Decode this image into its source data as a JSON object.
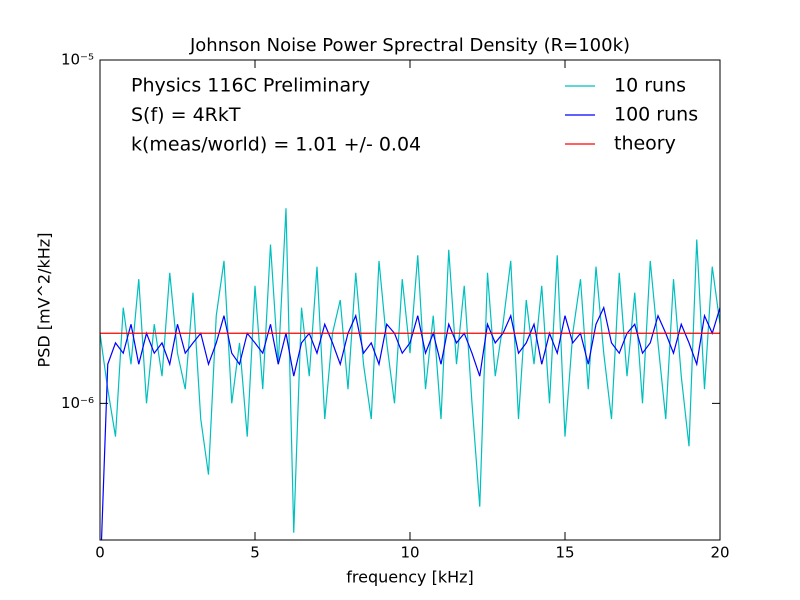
{
  "chart_data": {
    "type": "line",
    "title": "Johnson Noise Power Sprectral Density (R=100k)",
    "xlabel": "frequency [kHz]",
    "ylabel": "PSD [mV^2/kHz]",
    "annotations": [
      "Physics 116C Preliminary",
      "S(f) = 4RkT",
      "k(meas/world) = 1.01 +/- 0.04"
    ],
    "xlim": [
      0,
      20
    ],
    "xticks": [
      0,
      5,
      10,
      15,
      20
    ],
    "ylim": [
      4e-07,
      1e-05
    ],
    "yscale": "log",
    "yticks": [
      {
        "value": 1e-06,
        "label": "10⁻⁶"
      },
      {
        "value": 1e-05,
        "label": "10⁻⁵"
      }
    ],
    "legend": "upper right",
    "x": [
      0,
      0.25,
      0.5,
      0.75,
      1,
      1.25,
      1.5,
      1.75,
      2,
      2.25,
      2.5,
      2.75,
      3,
      3.25,
      3.5,
      3.75,
      4,
      4.25,
      4.5,
      4.75,
      5,
      5.25,
      5.5,
      5.75,
      6,
      6.25,
      6.5,
      6.75,
      7,
      7.25,
      7.5,
      7.75,
      8,
      8.25,
      8.5,
      8.75,
      9,
      9.25,
      9.5,
      9.75,
      10,
      10.25,
      10.5,
      10.75,
      11,
      11.25,
      11.5,
      11.75,
      12,
      12.25,
      12.5,
      12.75,
      13,
      13.25,
      13.5,
      13.75,
      14,
      14.25,
      14.5,
      14.75,
      15,
      15.25,
      15.5,
      15.75,
      16,
      16.25,
      16.5,
      16.75,
      17,
      17.25,
      17.5,
      17.75,
      18,
      18.25,
      18.5,
      18.75,
      19,
      19.25,
      19.5,
      19.75,
      20
    ],
    "series": [
      {
        "name": "10 runs",
        "color": "#00bfbf",
        "values": [
          1.6e-06,
          1.1e-06,
          8e-07,
          1.9e-06,
          1.3e-06,
          2.3e-06,
          1e-06,
          1.7e-06,
          1.2e-06,
          2.4e-06,
          1.4e-06,
          1.1e-06,
          2.1e-06,
          9e-07,
          6.2e-07,
          1.8e-06,
          2.6e-06,
          1e-06,
          1.5e-06,
          8e-07,
          2.2e-06,
          1.1e-06,
          2.9e-06,
          1.3e-06,
          3.7e-06,
          4.2e-07,
          1.9e-06,
          1.2e-06,
          2.5e-06,
          9e-07,
          1.6e-06,
          2e-06,
          1.1e-06,
          2.4e-06,
          1.3e-06,
          9e-07,
          2.6e-06,
          1.5e-06,
          1e-06,
          2.3e-06,
          1.4e-06,
          2.7e-06,
          1.1e-06,
          1.8e-06,
          9e-07,
          2.8e-06,
          1.3e-06,
          2.2e-06,
          1e-06,
          5e-07,
          2.4e-06,
          1.2e-06,
          1.7e-06,
          2.6e-06,
          9e-07,
          2e-06,
          1.3e-06,
          2.2e-06,
          1e-06,
          2.7e-06,
          8e-07,
          1.6e-06,
          2.3e-06,
          1.1e-06,
          2.5e-06,
          1.4e-06,
          9e-07,
          2.4e-06,
          1.2e-06,
          2.1e-06,
          1e-06,
          2.6e-06,
          1.5e-06,
          9e-07,
          2.3e-06,
          1.2e-06,
          7.5e-07,
          3e-06,
          1.1e-06,
          2.5e-06,
          1.7e-06
        ]
      },
      {
        "name": "100 runs",
        "color": "#0000ff",
        "values": [
          3e-07,
          1.3e-06,
          1.5e-06,
          1.4e-06,
          1.7e-06,
          1.3e-06,
          1.6e-06,
          1.4e-06,
          1.5e-06,
          1.3e-06,
          1.7e-06,
          1.4e-06,
          1.5e-06,
          1.6e-06,
          1.3e-06,
          1.5e-06,
          1.8e-06,
          1.4e-06,
          1.3e-06,
          1.6e-06,
          1.5e-06,
          1.4e-06,
          1.7e-06,
          1.3e-06,
          1.6e-06,
          1.2e-06,
          1.5e-06,
          1.6e-06,
          1.4e-06,
          1.7e-06,
          1.5e-06,
          1.3e-06,
          1.6e-06,
          1.8e-06,
          1.4e-06,
          1.5e-06,
          1.3e-06,
          1.7e-06,
          1.6e-06,
          1.4e-06,
          1.5e-06,
          1.8e-06,
          1.4e-06,
          1.6e-06,
          1.3e-06,
          1.7e-06,
          1.5e-06,
          1.6e-06,
          1.4e-06,
          1.2e-06,
          1.7e-06,
          1.5e-06,
          1.6e-06,
          1.8e-06,
          1.4e-06,
          1.5e-06,
          1.7e-06,
          1.3e-06,
          1.6e-06,
          1.4e-06,
          1.8e-06,
          1.5e-06,
          1.6e-06,
          1.3e-06,
          1.7e-06,
          1.9e-06,
          1.5e-06,
          1.4e-06,
          1.6e-06,
          1.7e-06,
          1.4e-06,
          1.5e-06,
          1.8e-06,
          1.6e-06,
          1.4e-06,
          1.7e-06,
          1.5e-06,
          1.3e-06,
          1.8e-06,
          1.6e-06,
          1.9e-06
        ]
      },
      {
        "name": "theory",
        "color": "#ff0000",
        "x": [
          0,
          20
        ],
        "values": [
          1.6e-06,
          1.6e-06
        ]
      }
    ]
  }
}
